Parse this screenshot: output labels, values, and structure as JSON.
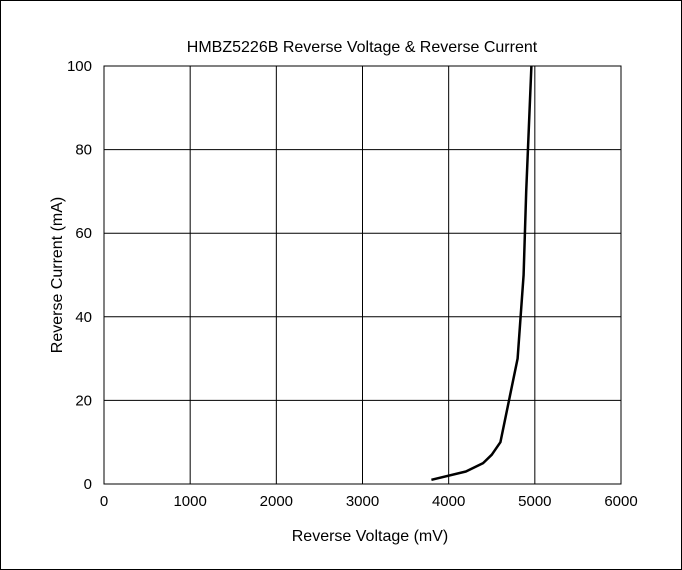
{
  "chart_data": {
    "type": "line",
    "title": "HMBZ5226B Reverse Voltage & Reverse Current",
    "xlabel": "Reverse Voltage (mV)",
    "ylabel": "Reverse Current (mA)",
    "xlim": [
      0,
      6000
    ],
    "ylim": [
      0,
      100
    ],
    "xticks": [
      0,
      1000,
      2000,
      3000,
      4000,
      5000,
      6000
    ],
    "yticks": [
      0,
      20,
      40,
      60,
      80,
      100
    ],
    "grid": true,
    "series": [
      {
        "x": [
          3800,
          4200,
          4400,
          4500,
          4600,
          4800,
          4870,
          4900,
          4960
        ],
        "y": [
          1,
          3,
          5,
          7,
          10,
          30,
          50,
          70,
          100
        ]
      }
    ],
    "colors": {
      "line": "#000000",
      "grid": "#000000",
      "background": "#ffffff"
    }
  }
}
